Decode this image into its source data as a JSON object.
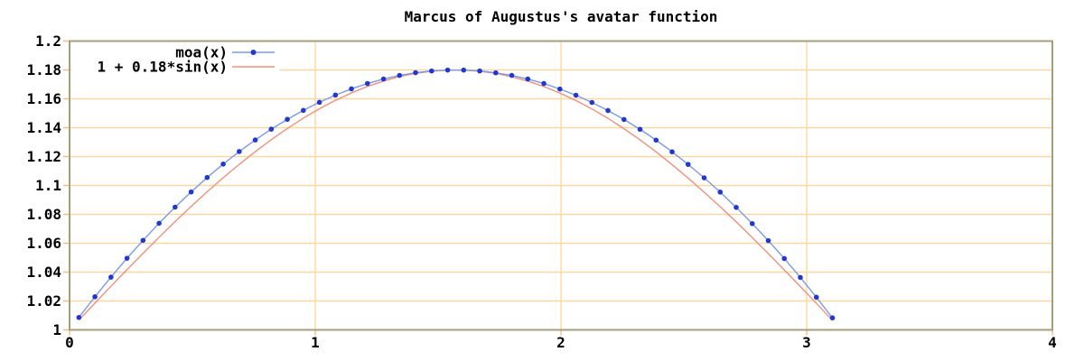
{
  "title": "Marcus of Augustus's avatar function",
  "chart_data": {
    "type": "line",
    "title": "Marcus of Augustus's avatar function",
    "xlabel": "",
    "ylabel": "",
    "xlim": [
      0,
      4
    ],
    "ylim": [
      1.0,
      1.2
    ],
    "xticks": {
      "values": [
        0,
        1,
        2,
        3,
        4
      ],
      "labels": [
        "0",
        "1",
        "2",
        "3",
        "4"
      ]
    },
    "yticks": {
      "values": [
        1,
        1.02,
        1.04,
        1.06,
        1.08,
        1.1,
        1.12,
        1.14,
        1.16,
        1.18,
        1.2
      ],
      "labels": [
        "1",
        "1.02",
        "1.04",
        "1.06",
        "1.08",
        "1.1",
        "1.12",
        "1.14",
        "1.16",
        "1.18",
        "1.2"
      ]
    },
    "grid": {
      "show": true,
      "x_gridlines_at": [
        1,
        2,
        3
      ],
      "y_gridlines_at": [
        1.02,
        1.04,
        1.06,
        1.08,
        1.1,
        1.12,
        1.14,
        1.16,
        1.18
      ]
    },
    "legend": {
      "position": "top-left",
      "opaque": true,
      "entries": [
        {
          "label": "moa(x)",
          "sample": "line-point",
          "series": 0
        },
        {
          "label": "1 + 0.18*sin(x)",
          "sample": "line",
          "series": 1
        }
      ]
    },
    "x": [
      0.038,
      0.1033,
      0.1685,
      0.2338,
      0.299,
      0.3643,
      0.4295,
      0.4948,
      0.56,
      0.6253,
      0.6905,
      0.7558,
      0.821,
      0.8863,
      0.9515,
      1.0168,
      1.082,
      1.1473,
      1.2125,
      1.2778,
      1.343,
      1.4083,
      1.4735,
      1.5388,
      1.604,
      1.6693,
      1.7345,
      1.7998,
      1.865,
      1.9303,
      1.9955,
      2.0608,
      2.126,
      2.1913,
      2.2565,
      2.3218,
      2.387,
      2.4523,
      2.5175,
      2.5828,
      2.648,
      2.7133,
      2.7785,
      2.8438,
      2.909,
      2.9743,
      3.0395,
      3.1048
    ],
    "series": [
      {
        "name": "moa(x)",
        "style": "linespoints",
        "line_color": "#7d98ec",
        "point_color": "#2238cd",
        "values": [
          1.0086,
          1.0229,
          1.0365,
          1.0496,
          1.062,
          1.0738,
          1.085,
          1.0955,
          1.1055,
          1.1148,
          1.1235,
          1.1315,
          1.139,
          1.1458,
          1.152,
          1.1576,
          1.1626,
          1.1669,
          1.1706,
          1.1737,
          1.1762,
          1.1781,
          1.1793,
          1.1799,
          1.1799,
          1.1793,
          1.178,
          1.1762,
          1.1737,
          1.1706,
          1.1668,
          1.1625,
          1.1575,
          1.1519,
          1.1457,
          1.1389,
          1.1314,
          1.1233,
          1.1146,
          1.1053,
          1.0954,
          1.0848,
          1.0736,
          1.0618,
          1.0494,
          1.0363,
          1.0226,
          1.0083
        ]
      },
      {
        "name": "1 + 0.18*sin(x)",
        "style": "lines",
        "line_color": "#f0907a",
        "values": [
          1.0068,
          1.0186,
          1.0302,
          1.0417,
          1.053,
          1.0641,
          1.075,
          1.0855,
          1.0956,
          1.1054,
          1.1146,
          1.1234,
          1.1317,
          1.1394,
          1.1466,
          1.1531,
          1.1589,
          1.1641,
          1.1686,
          1.1723,
          1.1754,
          1.1776,
          1.1791,
          1.1799,
          1.1799,
          1.1791,
          1.1776,
          1.1753,
          1.1723,
          1.1685,
          1.164,
          1.1588,
          1.153,
          1.1465,
          1.1393,
          1.1316,
          1.1233,
          1.1144,
          1.1051,
          1.0953,
          1.0853,
          1.0748,
          1.0639,
          1.0528,
          1.0415,
          1.03,
          1.0184,
          1.0066
        ]
      }
    ],
    "colors": {
      "grid": "#fcd7a1",
      "tick": "#ecbe82",
      "border": "#a89d7a",
      "text": "#000000",
      "background": "#ffffff"
    }
  }
}
